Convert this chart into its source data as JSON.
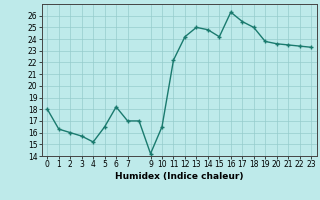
{
  "x": [
    0,
    1,
    2,
    3,
    4,
    5,
    6,
    7,
    8,
    9,
    10,
    11,
    12,
    13,
    14,
    15,
    16,
    17,
    18,
    19,
    20,
    21,
    22,
    23
  ],
  "y": [
    18,
    16.3,
    16.0,
    15.7,
    15.2,
    16.5,
    18.2,
    17.0,
    17.0,
    14.2,
    16.5,
    22.2,
    24.2,
    25.0,
    24.8,
    24.2,
    26.3,
    25.5,
    25.0,
    23.8,
    23.6,
    23.5,
    23.4,
    23.3
  ],
  "line_color": "#1a7a6e",
  "marker": "+",
  "marker_color": "#1a7a6e",
  "bg_color": "#beeaea",
  "grid_color": "#96cccc",
  "xlabel": "Humidex (Indice chaleur)",
  "ylim": [
    14,
    27
  ],
  "xlim": [
    -0.5,
    23.5
  ],
  "yticks": [
    14,
    15,
    16,
    17,
    18,
    19,
    20,
    21,
    22,
    23,
    24,
    25,
    26
  ],
  "xticks": [
    0,
    1,
    2,
    3,
    4,
    5,
    6,
    7,
    9,
    10,
    11,
    12,
    13,
    14,
    15,
    16,
    17,
    18,
    19,
    20,
    21,
    22,
    23
  ],
  "tick_fontsize": 5.5,
  "xlabel_fontsize": 6.5,
  "line_width": 1.0,
  "marker_size": 3.5
}
